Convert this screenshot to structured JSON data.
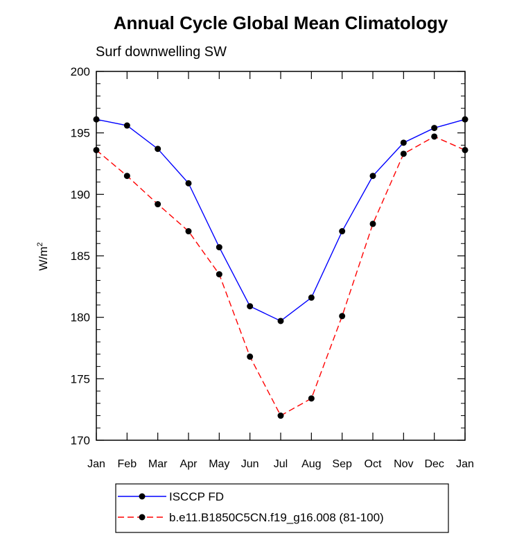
{
  "chart_data": {
    "type": "line",
    "title": "Annual Cycle Global Mean Climatology",
    "subtitle": "Surf downwelling SW",
    "ylabel": "W/m",
    "ylabel_sup": "2",
    "ylim": [
      170,
      200
    ],
    "yticks": [
      "170",
      "175",
      "180",
      "185",
      "190",
      "195",
      "200"
    ],
    "categories": [
      "Jan",
      "Feb",
      "Mar",
      "Apr",
      "May",
      "Jun",
      "Jul",
      "Aug",
      "Sep",
      "Oct",
      "Nov",
      "Dec",
      "Jan"
    ],
    "grid": false,
    "legend_position": "bottom",
    "series": [
      {
        "name": "ISCCP FD",
        "color": "#0000ff",
        "style": "solid",
        "values": [
          196.1,
          195.6,
          193.7,
          190.9,
          185.7,
          180.9,
          179.7,
          181.6,
          187.0,
          191.5,
          194.2,
          195.4,
          196.1
        ]
      },
      {
        "name": "b.e11.B1850C5CN.f19_g16.008 (81-100)",
        "color": "#ff0000",
        "style": "dashed",
        "values": [
          193.6,
          191.5,
          189.2,
          187.0,
          183.5,
          176.8,
          172.0,
          173.4,
          180.1,
          187.6,
          193.3,
          194.7,
          193.6
        ]
      }
    ]
  }
}
